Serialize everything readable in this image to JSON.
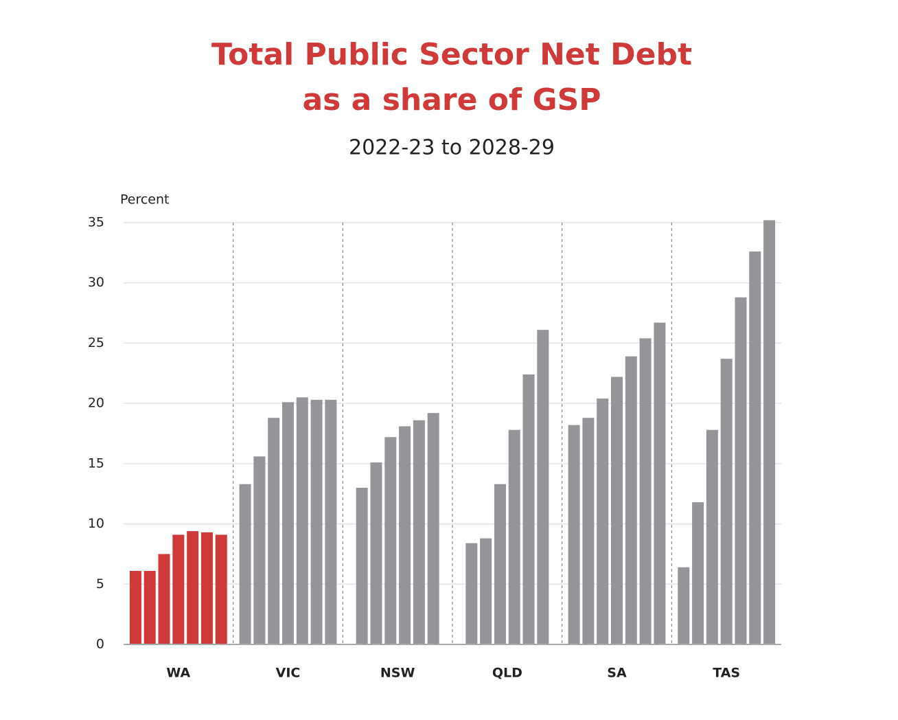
{
  "chart_data": {
    "type": "grouped_bar",
    "title": [
      "Total Public Sector Net Debt",
      "as a share of GSP"
    ],
    "subtitle": "2022-23 to 2028-29",
    "y_label": "Percent",
    "groups": [
      {
        "label": "WA",
        "color": "#d0393a",
        "values": [
          6.1,
          6.1,
          7.5,
          9.1,
          9.4,
          9.3,
          9.1
        ]
      },
      {
        "label": "VIC",
        "color": "#939598",
        "values": [
          13.3,
          15.6,
          18.8,
          20.1,
          20.5,
          20.3,
          20.3
        ]
      },
      {
        "label": "NSW",
        "color": "#939598",
        "values": [
          13.0,
          15.1,
          17.2,
          18.1,
          18.6,
          19.2
        ]
      },
      {
        "label": "QLD",
        "color": "#939598",
        "values": [
          8.4,
          8.8,
          13.3,
          17.8,
          22.4,
          26.1
        ]
      },
      {
        "label": "SA",
        "color": "#939598",
        "values": [
          18.2,
          18.8,
          20.4,
          22.2,
          23.9,
          25.4,
          26.7
        ]
      },
      {
        "label": "TAS",
        "color": "#939598",
        "values": [
          6.4,
          11.8,
          17.8,
          23.7,
          28.8,
          32.6,
          35.2
        ]
      }
    ],
    "ylim": [
      0,
      35
    ],
    "yticks": [
      0,
      5,
      10,
      15,
      20,
      25,
      30,
      35
    ],
    "grid": true
  }
}
